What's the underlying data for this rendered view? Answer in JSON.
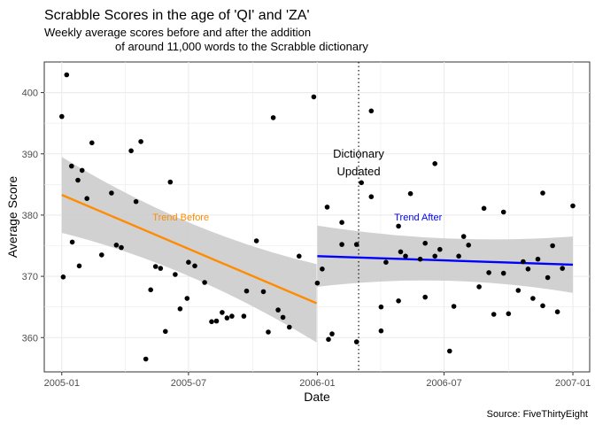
{
  "chart_data": {
    "type": "scatter",
    "title": "Scrabble Scores in the age of 'QI' and 'ZA'",
    "subtitle_lines": [
      "Weekly average scores before and after the addition",
      "of around 11,000 words to the Scrabble dictionary"
    ],
    "xlabel": "Date",
    "ylabel": "Average Score",
    "caption": "Source: FiveThirtyEight",
    "x_tick_labels": [
      "2005-01",
      "2005-07",
      "2006-01",
      "2006-07",
      "2007-01"
    ],
    "x_ticks": [
      "2005-01-01",
      "2005-07-01",
      "2006-01-01",
      "2006-07-01",
      "2007-01-01"
    ],
    "y_ticks": [
      360,
      370,
      380,
      390,
      400
    ],
    "xlim": [
      "2004-12-07",
      "2007-01-25"
    ],
    "ylim": [
      354.4,
      405.0
    ],
    "grid": true,
    "annotation": {
      "lines": [
        "Dictionary",
        "Updated"
      ],
      "x": "2006-03-01"
    },
    "vline_x": "2006-03-01",
    "colors": {
      "points": "#000000",
      "trend_before": "#FF8C00",
      "trend_after": "#0000FF",
      "ribbon": "#CCCCCC",
      "panel_bg": "#FFFFFF",
      "grid": "#EBEBEB"
    },
    "trend_before": {
      "label": "Trend Before",
      "start": [
        "2005-01-01",
        383.3
      ],
      "end": [
        "2005-12-31",
        365.6
      ],
      "ci_start": [
        377.1,
        389.5
      ],
      "ci_mid": [
        371.9,
        376.8
      ],
      "ci_end": [
        359.2,
        372.0
      ],
      "label_pos": [
        "2005-06-20",
        379.7
      ]
    },
    "trend_after": {
      "label": "Trend After",
      "start": [
        "2006-01-01",
        373.3
      ],
      "end": [
        "2007-01-01",
        371.9
      ],
      "ci_start": [
        368.3,
        378.3
      ],
      "ci_mid": [
        370.8,
        375.0
      ],
      "ci_end": [
        367.3,
        376.5
      ],
      "label_pos": [
        "2006-05-25",
        379.7
      ]
    },
    "points": [
      [
        "2005-01-01",
        396.1
      ],
      [
        "2005-01-03",
        369.9
      ],
      [
        "2005-01-08",
        402.9
      ],
      [
        "2005-01-15",
        388.0
      ],
      [
        "2005-01-16",
        375.6
      ],
      [
        "2005-01-24",
        385.7
      ],
      [
        "2005-01-26",
        371.7
      ],
      [
        "2005-01-30",
        387.3
      ],
      [
        "2005-02-06",
        382.7
      ],
      [
        "2005-02-13",
        391.8
      ],
      [
        "2005-02-27",
        373.5
      ],
      [
        "2005-03-13",
        383.6
      ],
      [
        "2005-03-20",
        375.1
      ],
      [
        "2005-03-27",
        374.7
      ],
      [
        "2005-04-10",
        390.5
      ],
      [
        "2005-04-17",
        382.2
      ],
      [
        "2005-04-24",
        392.0
      ],
      [
        "2005-05-01",
        356.5
      ],
      [
        "2005-05-08",
        367.8
      ],
      [
        "2005-05-15",
        371.6
      ],
      [
        "2005-05-22",
        371.3
      ],
      [
        "2005-05-29",
        361.0
      ],
      [
        "2005-06-05",
        385.4
      ],
      [
        "2005-06-12",
        370.3
      ],
      [
        "2005-06-19",
        364.7
      ],
      [
        "2005-06-29",
        366.4
      ],
      [
        "2005-07-01",
        372.3
      ],
      [
        "2005-07-10",
        371.7
      ],
      [
        "2005-07-24",
        369.0
      ],
      [
        "2005-08-03",
        362.6
      ],
      [
        "2005-08-10",
        362.7
      ],
      [
        "2005-08-18",
        364.1
      ],
      [
        "2005-08-25",
        363.2
      ],
      [
        "2005-09-01",
        363.5
      ],
      [
        "2005-09-18",
        363.5
      ],
      [
        "2005-09-22",
        367.6
      ],
      [
        "2005-10-06",
        375.8
      ],
      [
        "2005-10-16",
        367.5
      ],
      [
        "2005-10-23",
        360.9
      ],
      [
        "2005-10-30",
        395.9
      ],
      [
        "2005-11-06",
        364.5
      ],
      [
        "2005-11-13",
        363.3
      ],
      [
        "2005-11-22",
        361.7
      ],
      [
        "2005-12-06",
        373.3
      ],
      [
        "2005-12-27",
        399.3
      ],
      [
        "2006-01-01",
        368.9
      ],
      [
        "2006-01-08",
        371.2
      ],
      [
        "2006-01-15",
        381.3
      ],
      [
        "2006-01-17",
        359.7
      ],
      [
        "2006-01-22",
        360.6
      ],
      [
        "2006-02-05",
        375.2
      ],
      [
        "2006-02-05",
        378.8
      ],
      [
        "2006-02-26",
        359.3
      ],
      [
        "2006-02-26",
        375.2
      ],
      [
        "2006-03-05",
        385.3
      ],
      [
        "2006-03-19",
        397.0
      ],
      [
        "2006-03-19",
        383.0
      ],
      [
        "2006-04-02",
        361.1
      ],
      [
        "2006-04-02",
        365.0
      ],
      [
        "2006-04-09",
        372.3
      ],
      [
        "2006-04-27",
        366.0
      ],
      [
        "2006-04-27",
        378.2
      ],
      [
        "2006-04-30",
        374.0
      ],
      [
        "2006-05-07",
        373.3
      ],
      [
        "2006-05-14",
        383.5
      ],
      [
        "2006-05-28",
        372.8
      ],
      [
        "2006-06-04",
        366.6
      ],
      [
        "2006-06-04",
        375.4
      ],
      [
        "2006-06-18",
        388.4
      ],
      [
        "2006-06-18",
        373.3
      ],
      [
        "2006-06-25",
        374.4
      ],
      [
        "2006-07-09",
        357.8
      ],
      [
        "2006-07-15",
        365.1
      ],
      [
        "2006-07-22",
        373.3
      ],
      [
        "2006-07-29",
        376.5
      ],
      [
        "2006-08-05",
        375.1
      ],
      [
        "2006-08-20",
        368.3
      ],
      [
        "2006-08-27",
        381.1
      ],
      [
        "2006-09-03",
        370.6
      ],
      [
        "2006-09-10",
        363.8
      ],
      [
        "2006-09-24",
        380.5
      ],
      [
        "2006-09-24",
        370.5
      ],
      [
        "2006-10-01",
        363.9
      ],
      [
        "2006-10-15",
        367.7
      ],
      [
        "2006-10-22",
        372.4
      ],
      [
        "2006-10-29",
        371.2
      ],
      [
        "2006-11-05",
        366.4
      ],
      [
        "2006-11-12",
        372.8
      ],
      [
        "2006-11-19",
        383.6
      ],
      [
        "2006-11-19",
        365.2
      ],
      [
        "2006-11-26",
        369.8
      ],
      [
        "2006-12-03",
        375.0
      ],
      [
        "2006-12-10",
        364.2
      ],
      [
        "2006-12-17",
        371.3
      ],
      [
        "2007-01-01",
        381.5
      ]
    ]
  }
}
